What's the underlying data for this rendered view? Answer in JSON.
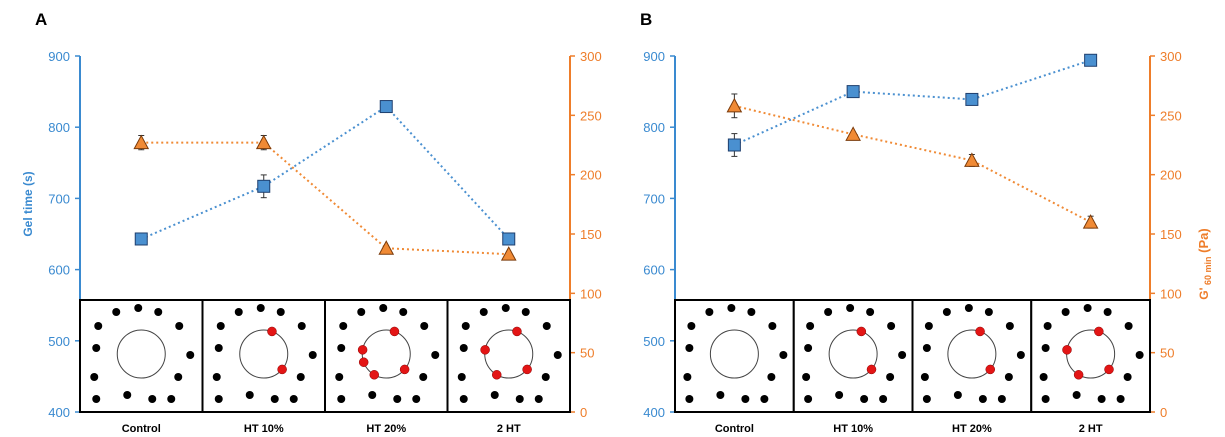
{
  "colors": {
    "left_axis": "#3a8ad0",
    "right_axis": "#ee7d2a",
    "square_fill": "#4a90d0",
    "square_stroke": "#1f3f6e",
    "triangle_fill": "#f08a35",
    "triangle_stroke": "#7a3a0a",
    "black_dot": "#000000",
    "red_dot": "#e31515"
  },
  "chart_data": [
    {
      "panel": "A",
      "type": "line",
      "categories": [
        "Control",
        "HT 10%",
        "HT 20%",
        "2 HT"
      ],
      "ylabel": "Gel time (s)",
      "y2label": "",
      "ylim": [
        400,
        900
      ],
      "y2lim": [
        0,
        300
      ],
      "yticks": [
        400,
        500,
        600,
        700,
        800,
        900
      ],
      "y2ticks": [
        0,
        50,
        100,
        150,
        200,
        250,
        300
      ],
      "grid": false,
      "series": [
        {
          "axis": "left",
          "marker": "square",
          "values": [
            643,
            717,
            829,
            643
          ],
          "errors": [
            0,
            16,
            5,
            8
          ]
        },
        {
          "axis": "right",
          "marker": "triangle",
          "values": [
            227,
            227,
            138,
            133
          ],
          "errors": [
            6,
            6,
            0,
            0
          ]
        }
      ],
      "schematic_red_counts": [
        0,
        2,
        5,
        4
      ]
    },
    {
      "panel": "B",
      "type": "line",
      "categories": [
        "Control",
        "HT 10%",
        "HT 20%",
        "2 HT"
      ],
      "ylabel": "",
      "y2label": "G'",
      "y2label_sub": "60 min",
      "y2label_unit": "(Pa)",
      "ylim": [
        400,
        900
      ],
      "y2lim": [
        0,
        300
      ],
      "yticks": [
        400,
        500,
        600,
        700,
        800,
        900
      ],
      "y2ticks": [
        0,
        50,
        100,
        150,
        200,
        250,
        300
      ],
      "grid": false,
      "series": [
        {
          "axis": "left",
          "marker": "square",
          "values": [
            775,
            850,
            839,
            894
          ],
          "errors": [
            16,
            0,
            0,
            0
          ]
        },
        {
          "axis": "right",
          "marker": "triangle",
          "values": [
            258,
            234,
            212,
            160
          ],
          "errors": [
            10,
            0,
            5,
            5
          ]
        }
      ],
      "schematic_red_counts": [
        0,
        2,
        2,
        4
      ]
    }
  ]
}
